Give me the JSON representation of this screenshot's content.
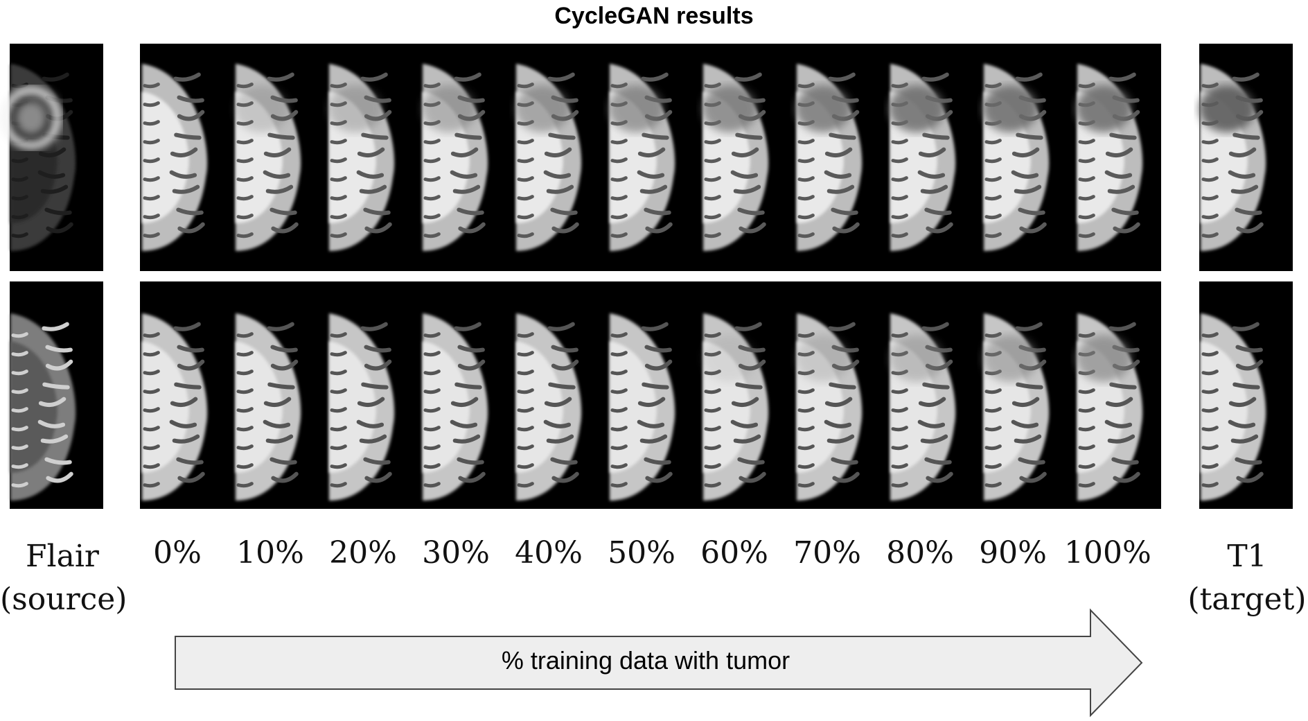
{
  "title": "CycleGAN results",
  "source_label": {
    "line1": "Flair",
    "line2": "(source)"
  },
  "target_label": {
    "line1": "T1",
    "line2": "(target)"
  },
  "columns": [
    "0%",
    "10%",
    "20%",
    "30%",
    "40%",
    "50%",
    "60%",
    "70%",
    "80%",
    "90%",
    "100%"
  ],
  "arrow_label": "% training data with tumor",
  "colors": {
    "background": "#ffffff",
    "panel": "#000000",
    "arrow_fill": "#eeeeee",
    "arrow_stroke": "#444444"
  }
}
